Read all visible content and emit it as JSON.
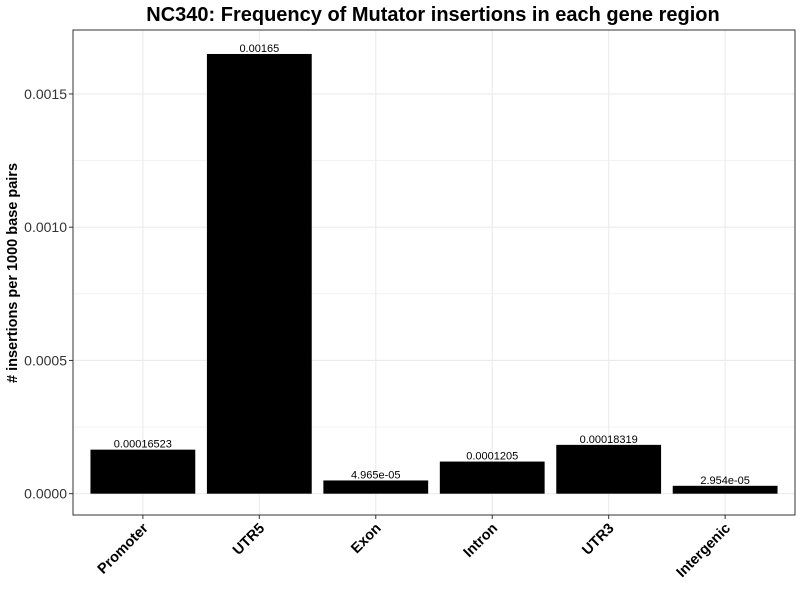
{
  "chart_data": {
    "type": "bar",
    "title": "NC340: Frequency of Mutator insertions in each gene region",
    "xlabel": "",
    "ylabel": "# insertions per 1000 base pairs",
    "categories": [
      "Promoter",
      "UTR5",
      "Exon",
      "Intron",
      "UTR3",
      "Intergenic"
    ],
    "values": [
      0.00016523,
      0.00165,
      4.965e-05,
      0.0001205,
      0.00018319,
      2.954e-05
    ],
    "value_labels": [
      "0.00016523",
      "0.00165",
      "4.965e-05",
      "0.0001205",
      "0.00018319",
      "2.954e-05"
    ],
    "yticks": [
      0.0,
      0.0005,
      0.001,
      0.0015
    ],
    "ytick_labels": [
      "0.0000",
      "0.0005",
      "0.0010",
      "0.0015"
    ],
    "ylim": [
      -8e-05,
      0.00174
    ],
    "grid": true,
    "legend": "none",
    "bar_color": "#000000",
    "grid_color": "#ebebeb",
    "panel_border_color": "#333333"
  }
}
